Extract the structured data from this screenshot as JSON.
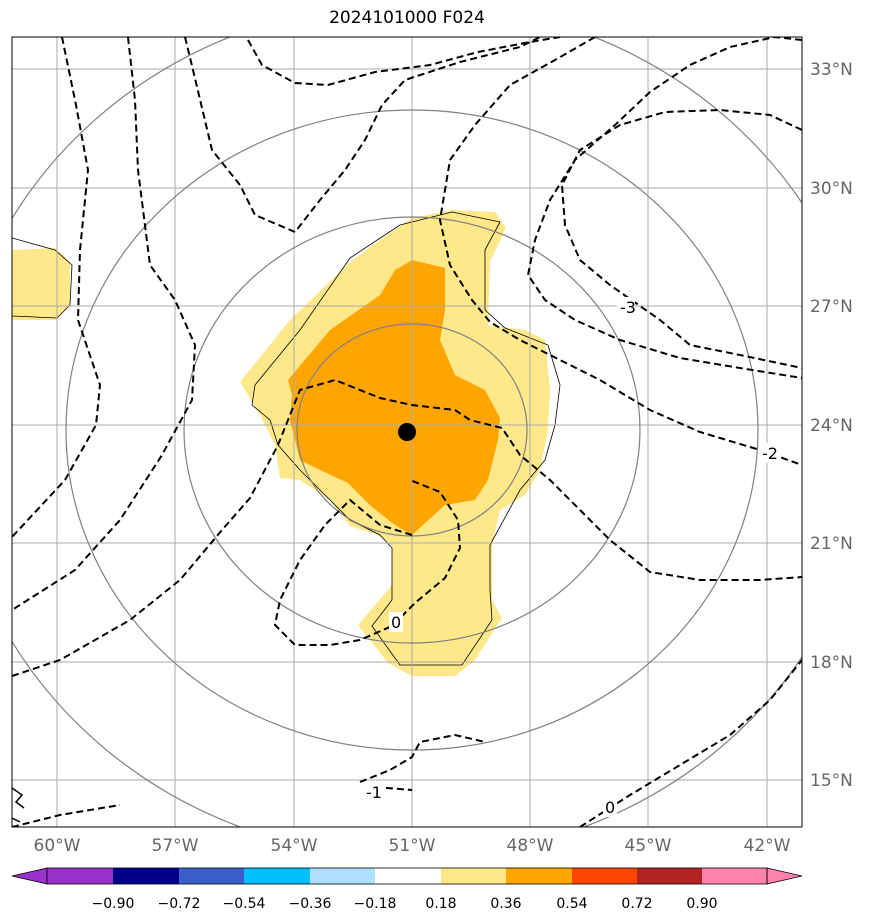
{
  "title": "2024101000 F024",
  "colors": {
    "anomaly_fill_light": "#fee88a",
    "anomaly_fill_dark": "#ffa500",
    "storm_center": "#000000",
    "grid": "#aaaaaa",
    "range_rings": "#808080"
  },
  "map": {
    "projection": "azimuthal",
    "lon_range": [
      -61.2,
      -40.9
    ],
    "lat_range": [
      13.8,
      34.2
    ],
    "lon_ticks": [
      "60°W",
      "57°W",
      "54°W",
      "51°W",
      "48°W",
      "45°W",
      "42°W"
    ],
    "lat_ticks": [
      "33°N",
      "30°N",
      "27°N",
      "24°N",
      "21°N",
      "18°N",
      "15°N"
    ],
    "storm_center": {
      "lon": -51.0,
      "lat": 23.8
    },
    "range_rings": 4,
    "contour_style": "dashed",
    "contour_labels": [
      {
        "text": "-3",
        "lon": -46.0,
        "lat": 27.0
      },
      {
        "text": "-2",
        "lon": -42.0,
        "lat": 23.4
      },
      {
        "text": "-1",
        "lon": -52.0,
        "lat": 14.6
      },
      {
        "text": "0",
        "lon": -50.8,
        "lat": 18.9
      },
      {
        "text": "0",
        "lon": -46.0,
        "lat": 15.1
      }
    ]
  },
  "colorbar": {
    "extend": "both",
    "tick_labels": [
      "−0.90",
      "−0.72",
      "−0.54",
      "−0.36",
      "−0.18",
      "0.18",
      "0.36",
      "0.54",
      "0.72",
      "0.90"
    ],
    "colors": [
      "#9932cc",
      "#00008b",
      "#3a5fcd",
      "#00bfff",
      "#b0e2ff",
      "#ffffff",
      "#fee88a",
      "#ffa500",
      "#ff4500",
      "#b22222",
      "#ff82ab"
    ]
  }
}
